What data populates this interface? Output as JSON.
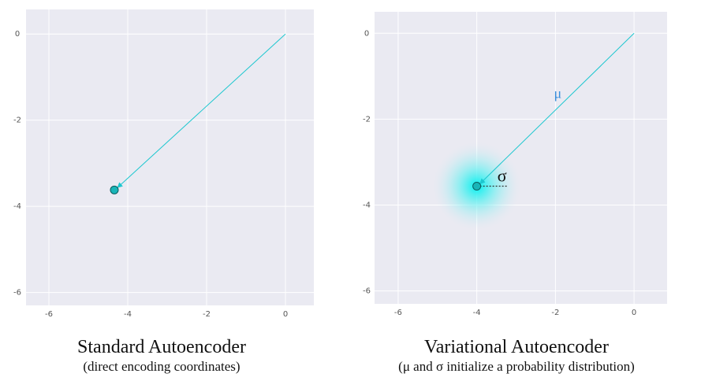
{
  "chart_data": [
    {
      "type": "vector",
      "title": "Standard Autoencoder",
      "subtitle": "(direct encoding coordinates)",
      "origin": {
        "x": 0,
        "y": 0
      },
      "x": [
        -4.34
      ],
      "values": [
        -3.62
      ],
      "color": "#1cc7cf",
      "xlim": [
        -6.58,
        0.72
      ],
      "ylim": [
        -6.3,
        0.57
      ],
      "xticks": [
        -6,
        -4,
        -2,
        0
      ],
      "yticks": [
        0,
        -2,
        -4,
        -6
      ],
      "grid": true
    },
    {
      "type": "vector",
      "title": "Variational Autoencoder",
      "subtitle": "(μ and σ initialize a probability distribution)",
      "origin": {
        "x": 0,
        "y": 0
      },
      "x": [
        -4.0
      ],
      "values": [
        -3.56
      ],
      "sigma": 0.8,
      "mu_label": "μ",
      "sigma_label": "σ",
      "color": "#1cc7cf",
      "xlim": [
        -6.6,
        0.84
      ],
      "ylim": [
        -6.3,
        0.5
      ],
      "xticks": [
        -6,
        -4,
        -2,
        0
      ],
      "yticks": [
        0,
        -2,
        -4,
        -6
      ],
      "grid": true
    }
  ]
}
